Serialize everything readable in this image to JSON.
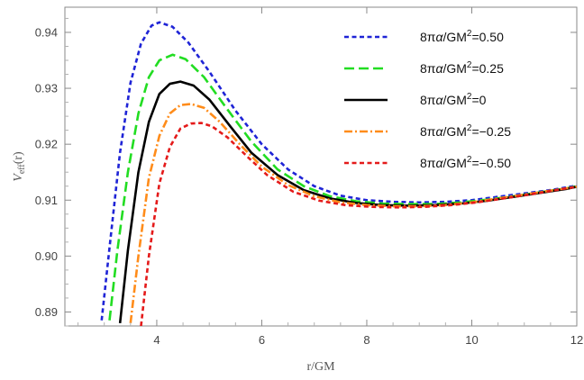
{
  "chart_data": {
    "type": "line",
    "title": "",
    "xlabel": "r/GM",
    "ylabel_main": "V",
    "ylabel_sub": "eff",
    "ylabel_suffix": "(r)",
    "xlim": [
      2.25,
      12
    ],
    "ylim": [
      0.8875,
      0.9445
    ],
    "xticks": [
      4,
      6,
      8,
      10,
      12
    ],
    "xtick_labels": [
      "4",
      "6",
      "8",
      "10",
      "12"
    ],
    "yticks": [
      0.89,
      0.9,
      0.91,
      0.92,
      0.93,
      0.94
    ],
    "ytick_labels": [
      "0.89",
      "0.90",
      "0.91",
      "0.92",
      "0.93",
      "0.94"
    ],
    "grid": false,
    "legend_position": "top-right",
    "series": [
      {
        "name": "8πα/GM²=0.50",
        "legend_parts": [
          "8π",
          "α",
          "/GM",
          "2",
          "=0.50"
        ],
        "color": "#1f24d6",
        "dash": "short-dash",
        "x": [
          2.95,
          3.1,
          3.3,
          3.5,
          3.7,
          3.9,
          4.05,
          4.3,
          4.6,
          5.0,
          5.5,
          6.0,
          6.5,
          7.0,
          7.5,
          8.0,
          8.5,
          9.0,
          9.5,
          10.0,
          10.5,
          11.0,
          11.5,
          12.0
        ],
        "y": [
          0.8885,
          0.9015,
          0.9185,
          0.931,
          0.938,
          0.9412,
          0.9418,
          0.941,
          0.9382,
          0.933,
          0.926,
          0.92,
          0.9155,
          0.9125,
          0.9108,
          0.91,
          0.9097,
          0.9096,
          0.9097,
          0.91,
          0.9106,
          0.9112,
          0.9118,
          0.9126
        ]
      },
      {
        "name": "8πα/GM²=0.25",
        "legend_parts": [
          "8π",
          "α",
          "/GM",
          "2",
          "=0.25"
        ],
        "color": "#22dd22",
        "dash": "long-dash",
        "x": [
          3.1,
          3.25,
          3.45,
          3.65,
          3.85,
          4.05,
          4.3,
          4.55,
          4.9,
          5.3,
          5.8,
          6.3,
          6.8,
          7.3,
          7.8,
          8.3,
          8.8,
          9.3,
          9.8,
          10.3,
          10.8,
          11.3,
          11.8,
          12.0
        ],
        "y": [
          0.8885,
          0.901,
          0.915,
          0.9255,
          0.932,
          0.935,
          0.936,
          0.9352,
          0.932,
          0.9268,
          0.9205,
          0.9155,
          0.9125,
          0.9107,
          0.9098,
          0.9094,
          0.9093,
          0.9093,
          0.9096,
          0.9101,
          0.9107,
          0.9114,
          0.9121,
          0.9125
        ]
      },
      {
        "name": "8πα/GM²=0",
        "legend_parts": [
          "8π",
          "α",
          "/GM",
          "2",
          "=0"
        ],
        "color": "#000000",
        "dash": "solid",
        "x": [
          3.3,
          3.45,
          3.65,
          3.85,
          4.05,
          4.25,
          4.45,
          4.7,
          5.0,
          5.4,
          5.8,
          6.3,
          6.8,
          7.3,
          7.8,
          8.3,
          8.8,
          9.3,
          9.8,
          10.3,
          10.8,
          11.3,
          11.8,
          12.0
        ],
        "y": [
          0.888,
          0.901,
          0.915,
          0.924,
          0.929,
          0.9308,
          0.9312,
          0.9305,
          0.928,
          0.9232,
          0.9185,
          0.9145,
          0.9118,
          0.9103,
          0.9095,
          0.9091,
          0.909,
          0.9091,
          0.9094,
          0.9099,
          0.9106,
          0.9113,
          0.912,
          0.9124
        ]
      },
      {
        "name": "8πα/GM²=−0.25",
        "legend_parts": [
          "8π",
          "α",
          "/GM",
          "2",
          "=−0.25"
        ],
        "color": "#ff8c1a",
        "dash": "dash-dot",
        "x": [
          3.5,
          3.65,
          3.85,
          4.05,
          4.25,
          4.45,
          4.65,
          4.9,
          5.2,
          5.6,
          6.0,
          6.5,
          7.0,
          7.5,
          8.0,
          8.5,
          9.0,
          9.5,
          10.0,
          10.5,
          11.0,
          11.5,
          12.0
        ],
        "y": [
          0.888,
          0.9,
          0.914,
          0.9215,
          0.9255,
          0.927,
          0.9272,
          0.9265,
          0.924,
          0.9198,
          0.916,
          0.9127,
          0.9107,
          0.9096,
          0.9091,
          0.9089,
          0.9089,
          0.9091,
          0.9096,
          0.9103,
          0.911,
          0.9117,
          0.9124
        ]
      },
      {
        "name": "8πα/GM²=−0.50",
        "legend_parts": [
          "8π",
          "α",
          "/GM",
          "2",
          "=−0.50"
        ],
        "color": "#e41a1a",
        "dash": "short-dash",
        "x": [
          3.7,
          3.85,
          4.05,
          4.25,
          4.45,
          4.65,
          4.85,
          5.05,
          5.35,
          5.7,
          6.1,
          6.6,
          7.1,
          7.6,
          8.1,
          8.6,
          9.1,
          9.6,
          10.1,
          10.6,
          11.1,
          11.6,
          12.0
        ],
        "y": [
          0.8875,
          0.9,
          0.913,
          0.9195,
          0.9228,
          0.9237,
          0.9238,
          0.9232,
          0.9212,
          0.918,
          0.9145,
          0.9115,
          0.9099,
          0.9091,
          0.9088,
          0.9087,
          0.9088,
          0.9091,
          0.9096,
          0.9103,
          0.911,
          0.9118,
          0.9124
        ]
      }
    ]
  }
}
